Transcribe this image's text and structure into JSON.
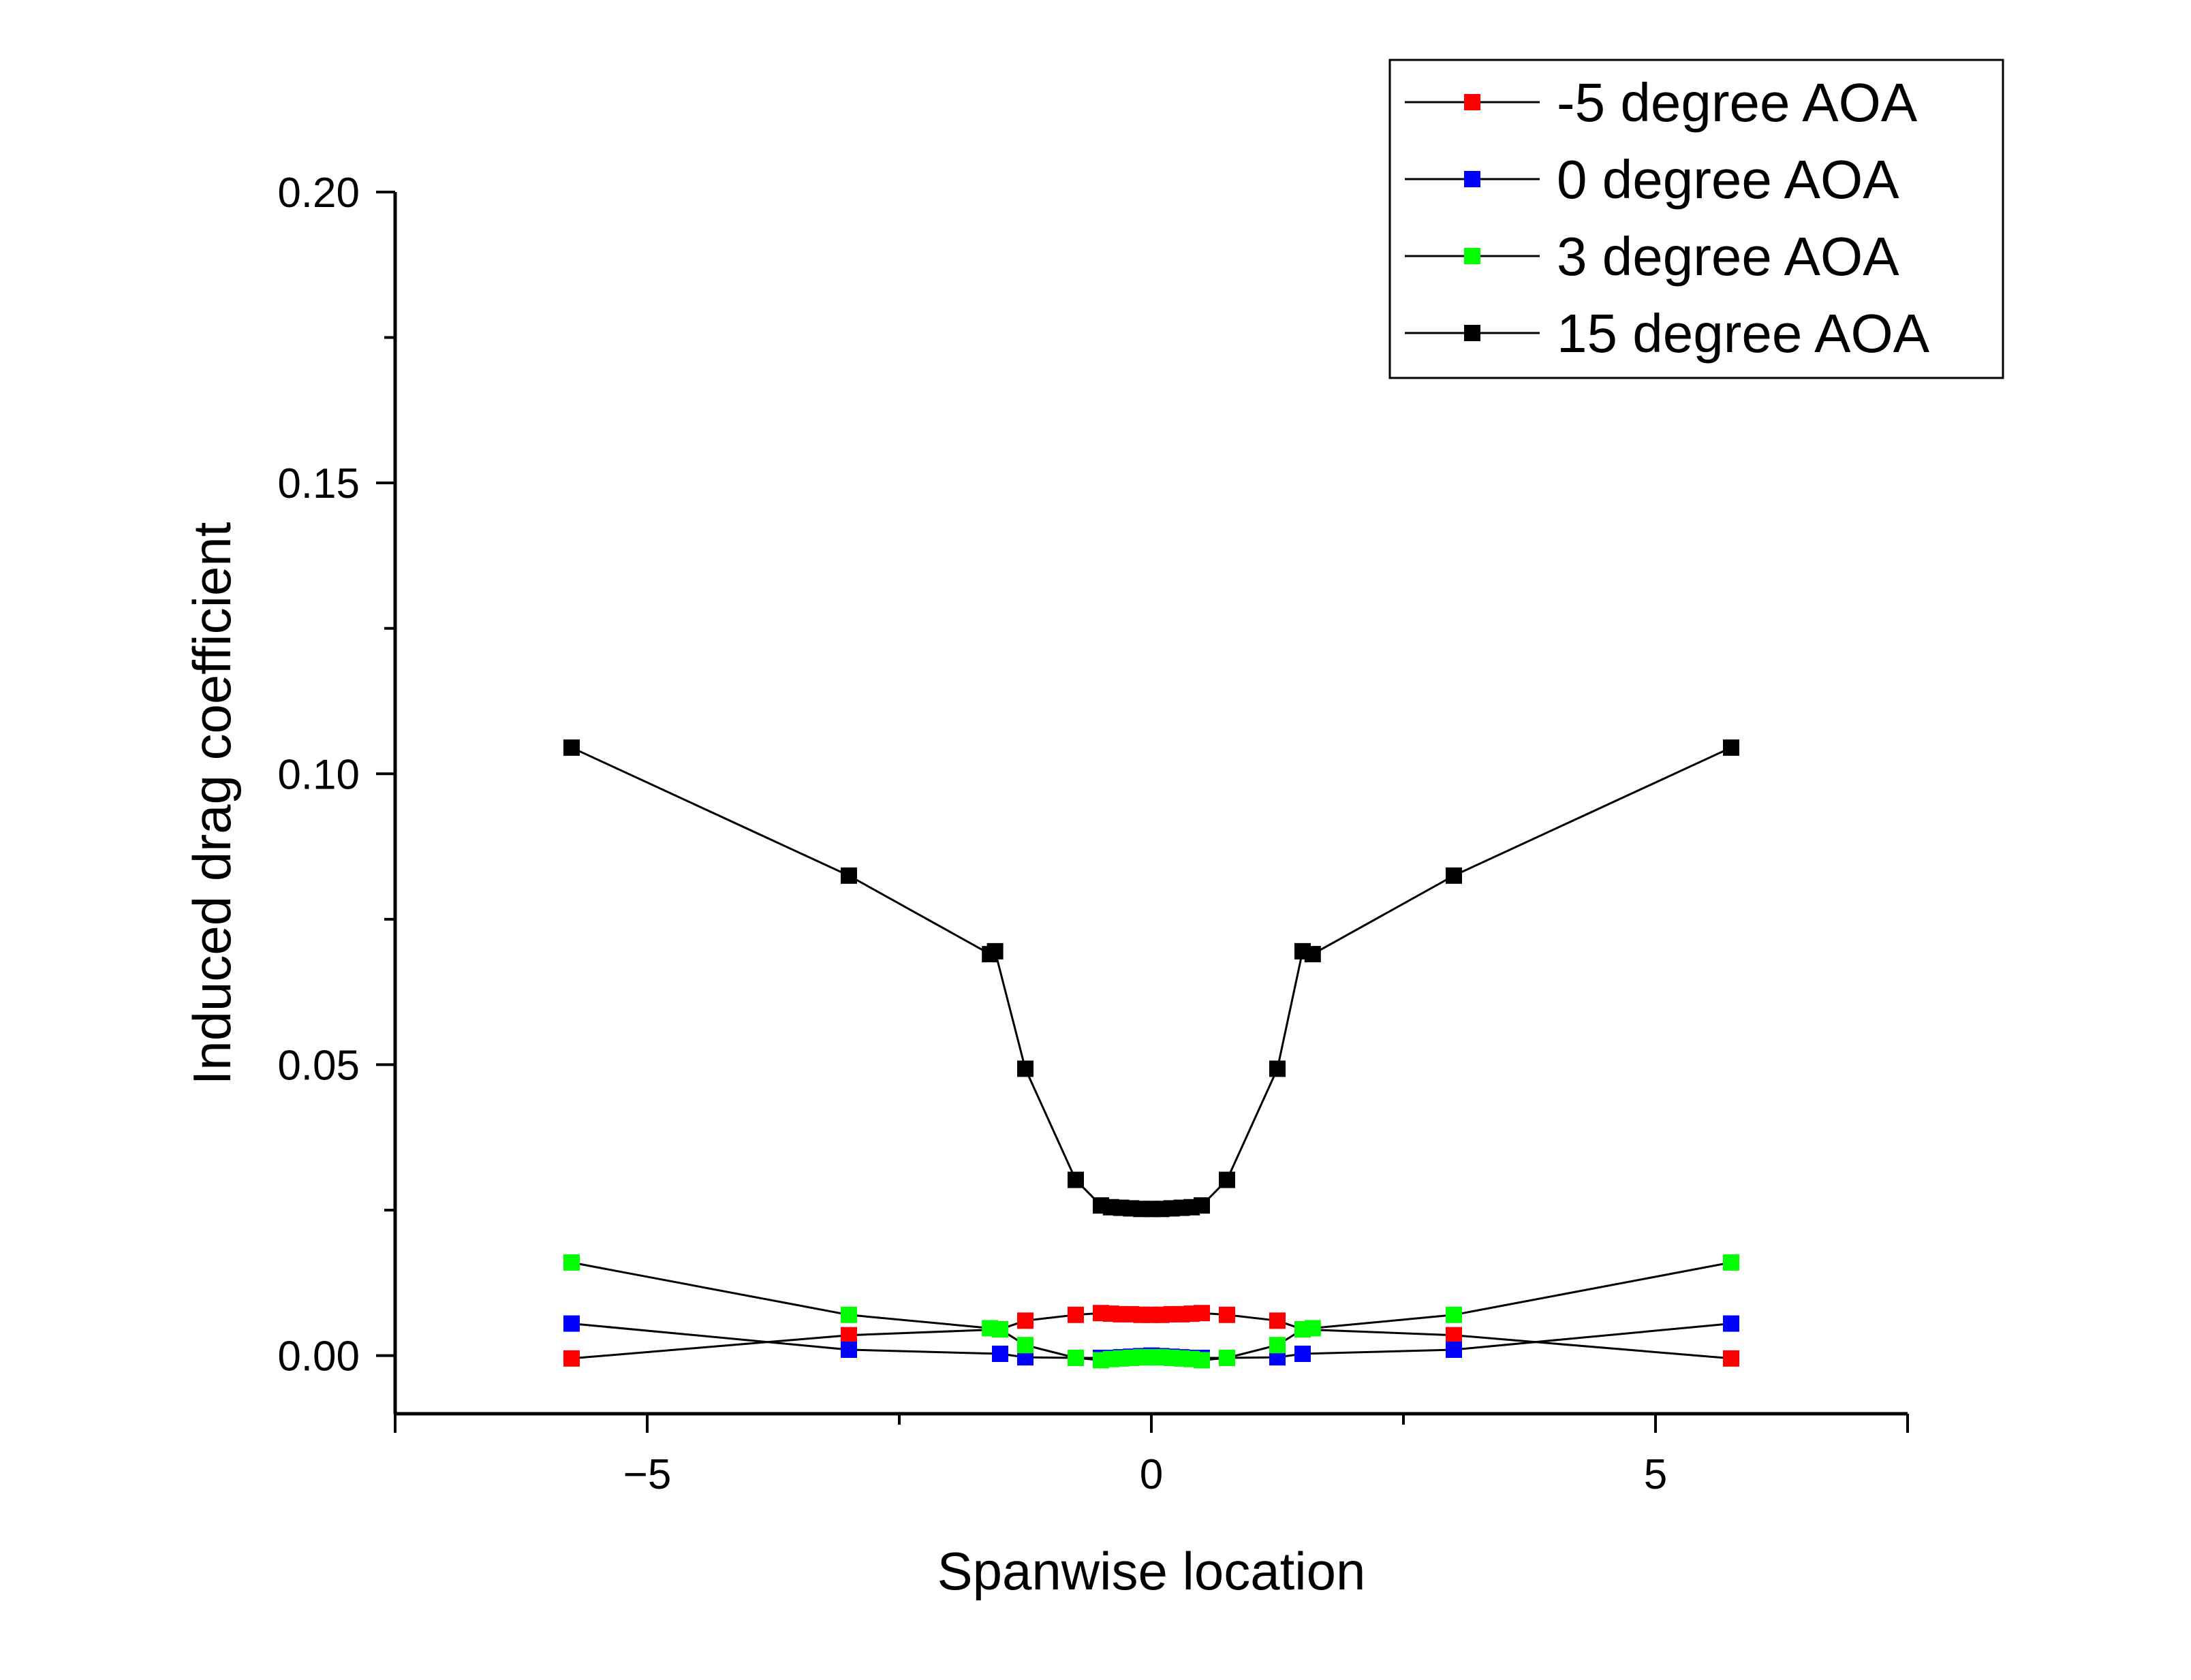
{
  "chart_data": {
    "type": "line",
    "title": "",
    "xlabel": "Spanwise location",
    "ylabel": "Induced drag coefficient",
    "xlim": [
      -7.5,
      7.5
    ],
    "ylim": [
      -0.01,
      0.2
    ],
    "x_ticks": [
      -5,
      0,
      5
    ],
    "x_tick_labels": [
      "−5",
      "0",
      "5"
    ],
    "y_ticks": [
      0.0,
      0.05,
      0.1,
      0.15,
      0.2
    ],
    "y_tick_labels": [
      "0.00",
      "0.05",
      "0.10",
      "0.15",
      "0.20"
    ],
    "grid": false,
    "legend_position": "top-right",
    "marker": "square",
    "series": [
      {
        "name": "-5 degree AOA",
        "color": "#ff0000",
        "x": [
          -5.75,
          -3.0,
          -1.5,
          -1.25,
          -0.75,
          -0.5,
          -0.4,
          -0.3,
          -0.2,
          -0.1,
          0.0,
          0.1,
          0.2,
          0.3,
          0.4,
          0.5,
          0.75,
          1.25,
          1.5,
          3.0,
          5.75
        ],
        "y": [
          -0.0005,
          0.0035,
          0.0045,
          0.006,
          0.007,
          0.0073,
          0.0072,
          0.0071,
          0.0071,
          0.007,
          0.007,
          0.007,
          0.0071,
          0.0071,
          0.0072,
          0.0073,
          0.007,
          0.006,
          0.0045,
          0.0035,
          -0.0005
        ]
      },
      {
        "name": "0 degree AOA",
        "color": "#0000ff",
        "x": [
          -5.75,
          -3.0,
          -1.5,
          -1.25,
          -0.75,
          -0.5,
          -0.4,
          -0.3,
          -0.2,
          -0.1,
          0.0,
          0.1,
          0.2,
          0.3,
          0.4,
          0.5,
          0.75,
          1.25,
          1.5,
          3.0,
          5.75
        ],
        "y": [
          0.0055,
          0.001,
          0.0003,
          -0.0003,
          -0.0004,
          -0.0004,
          -0.0004,
          -0.0003,
          -0.0002,
          -0.0001,
          0.0,
          -0.0001,
          -0.0002,
          -0.0003,
          -0.0004,
          -0.0004,
          -0.0004,
          -0.0003,
          0.0003,
          0.001,
          0.0055
        ]
      },
      {
        "name": "3 degree AOA",
        "color": "#00ff00",
        "x": [
          -5.75,
          -3.0,
          -1.6,
          -1.5,
          -1.25,
          -0.75,
          -0.5,
          -0.4,
          -0.3,
          -0.2,
          -0.1,
          0.0,
          0.1,
          0.2,
          0.3,
          0.4,
          0.5,
          0.75,
          1.25,
          1.5,
          1.6,
          3.0,
          5.75
        ],
        "y": [
          0.016,
          0.007,
          0.0047,
          0.0045,
          0.0018,
          -0.0004,
          -0.0008,
          -0.0006,
          -0.0005,
          -0.0004,
          -0.0003,
          -0.0003,
          -0.0003,
          -0.0004,
          -0.0005,
          -0.0006,
          -0.0008,
          -0.0004,
          0.0018,
          0.0045,
          0.0047,
          0.007,
          0.016
        ]
      },
      {
        "name": "15 degree AOA",
        "color": "#000000",
        "x": [
          -5.75,
          -3.0,
          -1.6,
          -1.55,
          -1.25,
          -0.75,
          -0.5,
          -0.4,
          -0.3,
          -0.2,
          -0.1,
          0.0,
          0.1,
          0.2,
          0.3,
          0.4,
          0.5,
          0.75,
          1.25,
          1.5,
          1.6,
          3.0,
          5.75
        ],
        "y": [
          0.1045,
          0.0825,
          0.069,
          0.0695,
          0.0493,
          0.0302,
          0.0258,
          0.0255,
          0.0254,
          0.0253,
          0.0252,
          0.0252,
          0.0252,
          0.0253,
          0.0254,
          0.0255,
          0.0258,
          0.0302,
          0.0493,
          0.0695,
          0.069,
          0.0825,
          0.1045
        ]
      }
    ]
  }
}
